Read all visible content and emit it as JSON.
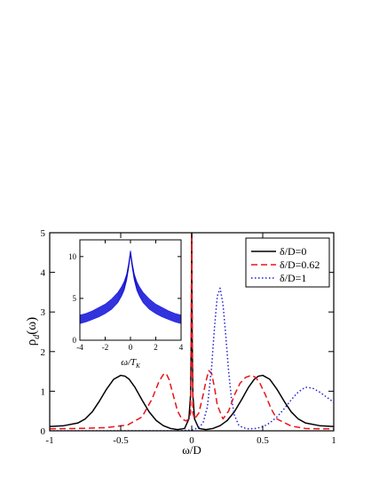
{
  "chart_data": [
    {
      "type": "line",
      "xlabel": "ω/D",
      "ylabel": "ρ",
      "ylabel_sub": "d",
      "ylabel_suffix": "(ω)",
      "xlim": [
        -1,
        1
      ],
      "ylim": [
        0,
        5
      ],
      "xticks": [
        -1,
        -0.5,
        0,
        0.5,
        1
      ],
      "xtick_labels": [
        "-1",
        "-0.5",
        "0",
        "0.5",
        "1"
      ],
      "yticks": [
        0,
        1,
        2,
        3,
        4,
        5
      ],
      "ytick_labels": [
        "0",
        "1",
        "2",
        "3",
        "4",
        "5"
      ],
      "grid": false,
      "legend_position": "top-right",
      "series": [
        {
          "name": "δ/D=0",
          "color": "#000000",
          "style": "solid",
          "x": [
            -1.0,
            -0.9,
            -0.8,
            -0.75,
            -0.7,
            -0.65,
            -0.6,
            -0.55,
            -0.5,
            -0.47,
            -0.44,
            -0.4,
            -0.35,
            -0.3,
            -0.25,
            -0.2,
            -0.15,
            -0.1,
            -0.05,
            -0.02,
            -0.008,
            -0.003,
            0.0,
            0.003,
            0.008,
            0.02,
            0.05,
            0.1,
            0.15,
            0.2,
            0.25,
            0.3,
            0.35,
            0.4,
            0.44,
            0.47,
            0.5,
            0.55,
            0.6,
            0.65,
            0.7,
            0.75,
            0.8,
            0.9,
            1.0
          ],
          "y": [
            0.11,
            0.13,
            0.2,
            0.3,
            0.48,
            0.75,
            1.05,
            1.3,
            1.4,
            1.38,
            1.3,
            1.1,
            0.78,
            0.48,
            0.26,
            0.13,
            0.06,
            0.03,
            0.06,
            0.3,
            0.9,
            2.5,
            5.0,
            2.5,
            0.9,
            0.3,
            0.06,
            0.03,
            0.06,
            0.13,
            0.26,
            0.48,
            0.78,
            1.1,
            1.3,
            1.38,
            1.4,
            1.3,
            1.05,
            0.75,
            0.48,
            0.3,
            0.2,
            0.13,
            0.11
          ]
        },
        {
          "name": "δ/D=0.62",
          "color": "#e8141a",
          "style": "dashed",
          "x": [
            -1.0,
            -0.8,
            -0.6,
            -0.45,
            -0.35,
            -0.28,
            -0.23,
            -0.2,
            -0.18,
            -0.16,
            -0.13,
            -0.1,
            -0.07,
            -0.04,
            -0.02,
            -0.008,
            0.0,
            0.008,
            0.02,
            0.05,
            0.08,
            0.1,
            0.12,
            0.14,
            0.16,
            0.18,
            0.22,
            0.26,
            0.3,
            0.34,
            0.38,
            0.42,
            0.45,
            0.48,
            0.52,
            0.56,
            0.6,
            0.7,
            0.8,
            0.9,
            1.0
          ],
          "y": [
            0.05,
            0.06,
            0.08,
            0.15,
            0.35,
            0.8,
            1.25,
            1.42,
            1.45,
            1.3,
            0.9,
            0.5,
            0.3,
            0.25,
            0.3,
            0.45,
            5.0,
            0.45,
            0.3,
            0.45,
            0.9,
            1.25,
            1.52,
            1.45,
            1.1,
            0.65,
            0.3,
            0.5,
            0.9,
            1.2,
            1.35,
            1.4,
            1.35,
            1.2,
            0.9,
            0.55,
            0.3,
            0.12,
            0.06,
            0.05,
            0.05
          ]
        },
        {
          "name": "δ/D=1",
          "color": "#1f1fd8",
          "style": "dotted",
          "x": [
            -1.0,
            -0.6,
            -0.3,
            -0.1,
            0.0,
            0.05,
            0.08,
            0.11,
            0.14,
            0.16,
            0.18,
            0.2,
            0.22,
            0.24,
            0.26,
            0.28,
            0.3,
            0.33,
            0.36,
            0.4,
            0.45,
            0.5,
            0.55,
            0.6,
            0.65,
            0.7,
            0.75,
            0.8,
            0.85,
            0.9,
            0.95,
            1.0
          ],
          "y": [
            0.0,
            0.0,
            0.0,
            0.0,
            0.02,
            0.08,
            0.2,
            0.6,
            1.6,
            2.6,
            3.4,
            3.6,
            3.2,
            2.4,
            1.5,
            0.8,
            0.4,
            0.15,
            0.08,
            0.05,
            0.06,
            0.1,
            0.2,
            0.35,
            0.55,
            0.78,
            0.98,
            1.1,
            1.08,
            0.98,
            0.85,
            0.72
          ]
        }
      ]
    },
    {
      "type": "line",
      "xlabel": "ω/T",
      "xlabel_sub": "K",
      "ylabel": "",
      "xlim": [
        -4,
        4
      ],
      "ylim": [
        0,
        12
      ],
      "xticks": [
        -4,
        -2,
        0,
        2,
        4
      ],
      "xtick_labels": [
        "-4",
        "-2",
        "0",
        "2",
        "4"
      ],
      "yticks": [
        0,
        5,
        10
      ],
      "ytick_labels": [
        "0",
        "5",
        "10"
      ],
      "grid": false,
      "series": [
        {
          "color": "#1a1ae0",
          "style": "solid",
          "x": [
            -4.0,
            -3.5,
            -3.0,
            -2.5,
            -2.0,
            -1.5,
            -1.0,
            -0.7,
            -0.5,
            -0.3,
            -0.15,
            0.0,
            0.15,
            0.3,
            0.5,
            0.7,
            1.0,
            1.5,
            2.0,
            2.5,
            3.0,
            3.5,
            4.0
          ],
          "y_band_low": [
            2.0,
            2.2,
            2.5,
            2.8,
            3.2,
            3.7,
            4.5,
            5.3,
            6.0,
            7.2,
            8.6,
            10.3,
            8.6,
            7.2,
            6.0,
            5.3,
            4.5,
            3.7,
            3.2,
            2.8,
            2.5,
            2.2,
            2.0
          ],
          "y_band_high": [
            3.0,
            3.2,
            3.5,
            3.9,
            4.3,
            4.9,
            5.7,
            6.4,
            7.0,
            7.9,
            9.1,
            10.7,
            9.1,
            7.9,
            7.0,
            6.4,
            5.7,
            4.9,
            4.3,
            3.9,
            3.5,
            3.2,
            3.0
          ]
        }
      ]
    }
  ]
}
